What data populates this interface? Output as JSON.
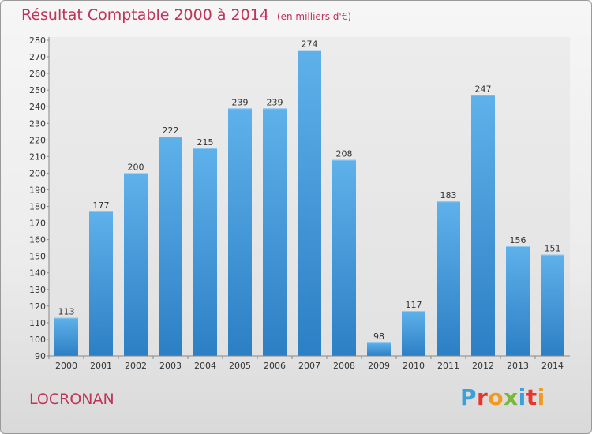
{
  "title": "Résultat Comptable 2000 à 2014",
  "unit": "(en milliers d'€)",
  "place": "LOCRONAN",
  "brand": {
    "text": "Proxiti",
    "colors": [
      "#3aa0dc",
      "#e8352e",
      "#f39a1e",
      "#7ab83a",
      "#3aa0dc",
      "#e8352e",
      "#f39a1e"
    ]
  },
  "chart_data": {
    "type": "bar",
    "title": "Résultat Comptable 2000 à 2014",
    "xlabel": "",
    "ylabel": "",
    "categories": [
      "2000",
      "2001",
      "2002",
      "2003",
      "2004",
      "2005",
      "2006",
      "2007",
      "2008",
      "2009",
      "2010",
      "2011",
      "2012",
      "2013",
      "2014"
    ],
    "values": [
      113,
      177,
      200,
      222,
      215,
      239,
      239,
      274,
      208,
      98,
      117,
      183,
      247,
      156,
      151
    ],
    "ylim": [
      90,
      280
    ],
    "yticks": [
      90,
      100,
      110,
      120,
      130,
      140,
      150,
      160,
      170,
      180,
      190,
      200,
      210,
      220,
      230,
      240,
      250,
      260,
      270,
      280
    ],
    "grid": false,
    "bar_color": "#3d95d8"
  }
}
